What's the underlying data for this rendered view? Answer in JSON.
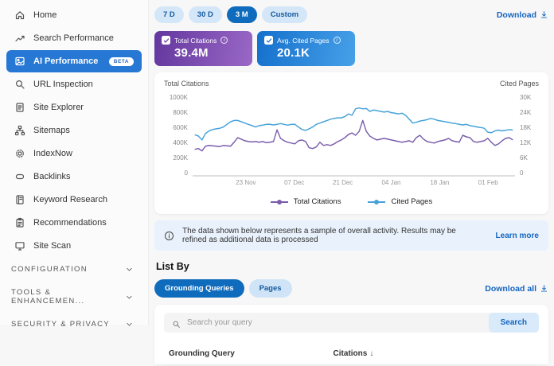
{
  "sidebar": {
    "items": [
      {
        "label": "Home",
        "icon": "home-icon"
      },
      {
        "label": "Search Performance",
        "icon": "trend-icon"
      },
      {
        "label": "AI Performance",
        "icon": "ai-performance-icon",
        "badge": "BETA",
        "selected": true
      },
      {
        "label": "URL Inspection",
        "icon": "magnifier-icon"
      },
      {
        "label": "Site Explorer",
        "icon": "document-icon"
      },
      {
        "label": "Sitemaps",
        "icon": "sitemap-icon"
      },
      {
        "label": "IndexNow",
        "icon": "gear-icon"
      },
      {
        "label": "Backlinks",
        "icon": "link-icon"
      },
      {
        "label": "Keyword Research",
        "icon": "book-icon"
      },
      {
        "label": "Recommendations",
        "icon": "clipboard-icon"
      },
      {
        "label": "Site Scan",
        "icon": "monitor-icon"
      }
    ],
    "sections": [
      {
        "label": "CONFIGURATION"
      },
      {
        "label": "TOOLS & ENHANCEMEN..."
      },
      {
        "label": "SECURITY & PRIVACY"
      }
    ]
  },
  "toolbar": {
    "ranges": [
      {
        "label": "7 D"
      },
      {
        "label": "30 D"
      },
      {
        "label": "3 M",
        "selected": true
      },
      {
        "label": "Custom"
      }
    ],
    "download_label": "Download"
  },
  "stat_cards": [
    {
      "title": "Total Citations",
      "value": "39.4M",
      "checked": true,
      "gradient_from": "#63379e",
      "gradient_to": "#9a68c6",
      "check_color": "#6a3da2"
    },
    {
      "title": "Avg. Cited Pages",
      "value": "20.1K",
      "checked": true,
      "gradient_from": "#1470cc",
      "gradient_to": "#47a0e8",
      "check_color": "#1470cc"
    }
  ],
  "chart_data": {
    "type": "line",
    "left_axis": {
      "label": "Total Citations",
      "ticks": [
        "1000K",
        "800K",
        "600K",
        "400K",
        "200K",
        "0"
      ],
      "max": 1000
    },
    "right_axis": {
      "label": "Cited Pages",
      "ticks": [
        "30K",
        "24K",
        "18K",
        "12K",
        "6K",
        "0"
      ],
      "max": 30
    },
    "x_ticks": {
      "labels": [
        "23 Nov",
        "07 Dec",
        "21 Dec",
        "04 Jan",
        "18 Jan",
        "01 Feb"
      ],
      "positions": [
        14,
        28,
        42,
        56,
        70,
        84
      ],
      "n_points": 90
    },
    "grid": false,
    "legend_position": "bottom",
    "series": [
      {
        "name": "Total Citations",
        "axis": "left",
        "color": "#7a5cab",
        "unit": "K",
        "values": [
          330,
          340,
          310,
          370,
          380,
          375,
          370,
          365,
          380,
          375,
          370,
          420,
          480,
          460,
          440,
          430,
          425,
          430,
          420,
          430,
          415,
          420,
          430,
          580,
          470,
          440,
          420,
          410,
          400,
          440,
          450,
          430,
          350,
          340,
          360,
          420,
          380,
          390,
          380,
          400,
          430,
          450,
          480,
          520,
          540,
          510,
          560,
          700,
          560,
          500,
          470,
          450,
          460,
          470,
          460,
          450,
          440,
          430,
          420,
          430,
          440,
          420,
          480,
          510,
          460,
          430,
          420,
          410,
          430,
          440,
          450,
          470,
          440,
          430,
          420,
          510,
          490,
          480,
          430,
          420,
          430,
          440,
          470,
          420,
          380,
          400,
          440,
          470,
          480,
          450
        ]
      },
      {
        "name": "Cited Pages",
        "axis": "right",
        "color": "#46a2da",
        "unit": "K",
        "values": [
          15.5,
          15,
          13.5,
          16,
          17,
          17.5,
          17.8,
          18,
          18.5,
          19.5,
          20.5,
          21,
          21,
          20.5,
          20,
          19.5,
          19,
          18.5,
          19,
          19.2,
          19.5,
          19.5,
          19.3,
          19.5,
          19.8,
          19.5,
          19.2,
          19.5,
          19.5,
          18.5,
          17.5,
          17.2,
          17.8,
          18.5,
          19.5,
          20,
          20.5,
          21,
          21.5,
          21.8,
          22,
          22,
          22.5,
          23.5,
          23,
          25.5,
          25.8,
          25.5,
          25.6,
          24.5,
          25,
          24.8,
          24.5,
          24.2,
          24.5,
          24,
          23.8,
          23.5,
          23.8,
          23,
          21.5,
          20,
          20.3,
          20.8,
          21,
          21.3,
          21.8,
          21.5,
          21,
          20.8,
          20.5,
          20.3,
          20,
          19.8,
          19.5,
          19.3,
          19.5,
          19,
          18.8,
          18.5,
          18.3,
          18,
          16.5,
          16.3,
          17,
          17.3,
          17,
          17.2,
          17.5,
          17.3
        ]
      }
    ]
  },
  "banner": {
    "text": "The data shown below represents a sample of overall activity. Results may be refined as additional data is processed",
    "link_label": "Learn more"
  },
  "list_by": {
    "title": "List By",
    "tabs": [
      {
        "label": "Grounding Queries",
        "selected": true
      },
      {
        "label": "Pages"
      }
    ],
    "download_all_label": "Download all"
  },
  "search": {
    "placeholder": "Search your query",
    "button_label": "Search"
  },
  "table": {
    "columns": [
      {
        "label": "Grounding Query"
      },
      {
        "label": "Citations",
        "sort": "desc"
      }
    ]
  },
  "colors": {
    "accent_blue": "#2778d4",
    "pill_selected": "#0f6cbd",
    "pill_bg": "#d4e7f8",
    "link_blue": "#1565c0",
    "banner_bg": "#e9f2fc",
    "line_purple": "#7a5cab",
    "line_blue": "#46a2da"
  }
}
